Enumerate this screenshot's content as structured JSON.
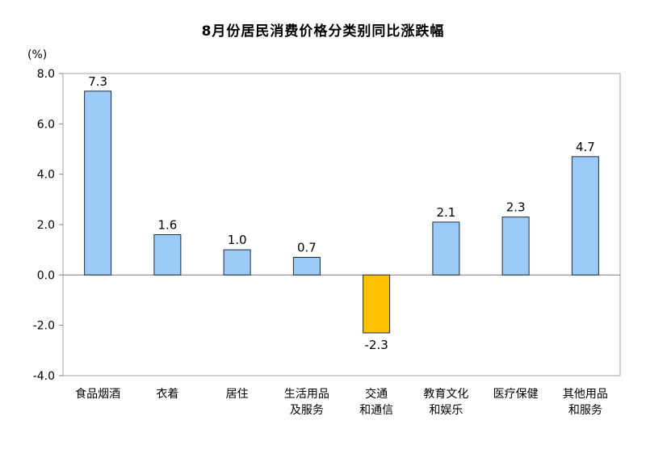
{
  "chart_data": {
    "type": "bar",
    "title": "8月份居民消费价格分类别同比涨跌幅",
    "ylabel": "(%)",
    "xlabel": "",
    "ylim": [
      -4.0,
      8.0
    ],
    "yticks": [
      "8.0",
      "6.0",
      "4.0",
      "2.0",
      "0.0",
      "-2.0",
      "-4.0"
    ],
    "ytick_values": [
      8,
      6,
      4,
      2,
      0,
      -2,
      -4
    ],
    "categories": [
      [
        "食品烟酒"
      ],
      [
        "衣着"
      ],
      [
        "居住"
      ],
      [
        "生活用品",
        "及服务"
      ],
      [
        "交通",
        "和通信"
      ],
      [
        "教育文化",
        "和娱乐"
      ],
      [
        "医疗保健"
      ],
      [
        "其他用品",
        "和服务"
      ]
    ],
    "values": [
      7.3,
      1.6,
      1.0,
      0.7,
      -2.3,
      2.1,
      2.3,
      4.7
    ],
    "value_labels": [
      "7.3",
      "1.6",
      "1.0",
      "0.7",
      "-2.3",
      "2.1",
      "2.3",
      "4.7"
    ],
    "grid": false,
    "legend": "none",
    "colors": {
      "positive": "#9DCBF7",
      "negative": "#FFC000",
      "bar_stroke": "#1F2D3D",
      "axis": "#808080",
      "frame": "#A6A6A6"
    }
  }
}
